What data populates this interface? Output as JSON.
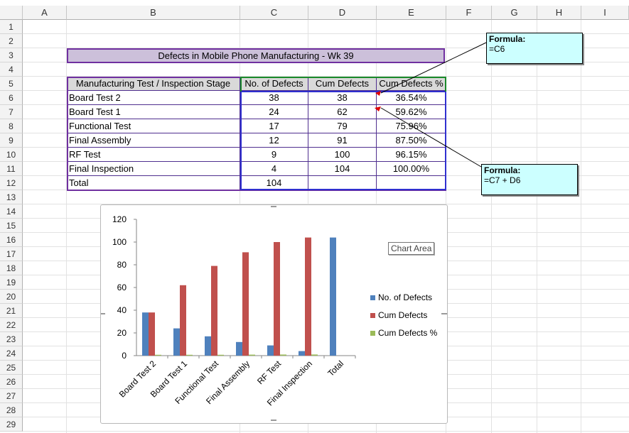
{
  "columns": [
    "A",
    "B",
    "C",
    "D",
    "E",
    "F",
    "G",
    "H",
    "I"
  ],
  "rows": [
    "1",
    "2",
    "3",
    "4",
    "5",
    "6",
    "7",
    "8",
    "9",
    "10",
    "11",
    "12",
    "13",
    "14",
    "15",
    "16",
    "17",
    "18",
    "19",
    "20",
    "21",
    "22",
    "23",
    "24",
    "25",
    "26",
    "27",
    "28",
    "29"
  ],
  "title": "Defects in Mobile Phone Manufacturing - Wk 39",
  "table": {
    "headers": [
      "Manufacturing Test / Inspection Stage",
      "No. of Defects",
      "Cum Defects",
      "Cum Defects %"
    ],
    "rows": [
      [
        "Board Test 2",
        "38",
        "38",
        "36.54%"
      ],
      [
        "Board Test  1",
        "24",
        "62",
        "59.62%"
      ],
      [
        "Functional Test",
        "17",
        "79",
        "75.96%"
      ],
      [
        "Final Assembly",
        "12",
        "91",
        "87.50%"
      ],
      [
        "RF Test",
        "9",
        "100",
        "96.15%"
      ],
      [
        "Final Inspection",
        "4",
        "104",
        "100.00%"
      ]
    ],
    "total_label": "Total",
    "total_value": "104"
  },
  "comments": [
    {
      "heading": "Formula:",
      "body": "=C6"
    },
    {
      "heading": "Formula:",
      "body": "=C7 + D6"
    }
  ],
  "chart_area_tooltip": "Chart Area",
  "colors": {
    "series1": "#4f81bd",
    "series2": "#c0504d",
    "series3": "#9bbb59",
    "title_fill": "#ccc0da",
    "comment_fill": "#ccffff"
  },
  "chart_data": {
    "type": "bar",
    "categories": [
      "Board Test 2",
      "Board Test  1",
      "Functional Test",
      "Final Assembly",
      "RF Test",
      "Final Inspection",
      "Total"
    ],
    "series": [
      {
        "name": "No. of Defects",
        "values": [
          38,
          24,
          17,
          12,
          9,
          4,
          104
        ]
      },
      {
        "name": "Cum Defects",
        "values": [
          38,
          62,
          79,
          91,
          100,
          104,
          0
        ]
      },
      {
        "name": "Cum Defects %",
        "values": [
          0.3654,
          0.5962,
          0.7596,
          0.875,
          0.9615,
          1.0,
          0
        ]
      }
    ],
    "y_ticks": [
      "0",
      "20",
      "40",
      "60",
      "80",
      "100",
      "120"
    ],
    "ylim": [
      0,
      120
    ],
    "legend_position": "right",
    "grid": false
  }
}
